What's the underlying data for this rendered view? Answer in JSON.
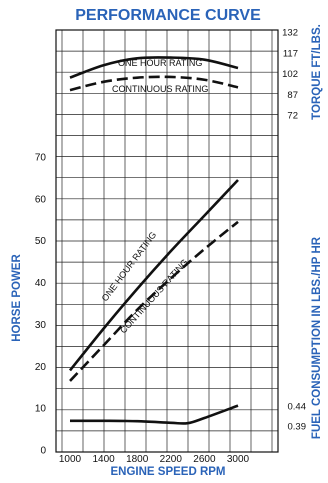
{
  "chart_data": [
    {
      "type": "line",
      "title": "PERFORMANCE CURVE",
      "xlabel": "ENGINE SPEED RPM",
      "ylabel": "HORSE POWER",
      "x_ticks": [
        1000,
        1400,
        1800,
        2200,
        2600,
        3000
      ],
      "y_ticks": [
        0,
        10,
        20,
        30,
        40,
        50,
        60,
        70
      ],
      "xlim": [
        1000,
        3000
      ],
      "ylim": [
        0,
        70
      ],
      "grid": true,
      "series": [
        {
          "name": "ONE HOUR RATING",
          "x": [
            1000,
            1400,
            1800,
            2200,
            2600,
            3000
          ],
          "y": [
            19,
            29,
            38.5,
            47.5,
            56,
            64.5
          ]
        },
        {
          "name": "CONTINUOUS RATING",
          "x": [
            1000,
            1400,
            1800,
            2200,
            2600,
            3000
          ],
          "y": [
            16.5,
            25,
            33.5,
            41,
            48,
            54.5
          ],
          "dashed": true
        }
      ]
    },
    {
      "type": "line",
      "ylabel": "TORQUE FT/LBS.",
      "y_ticks": [
        72,
        87,
        102,
        117,
        132
      ],
      "series": [
        {
          "name": "ONE HOUR RATING",
          "x": [
            1000,
            1400,
            1800,
            2200,
            2600,
            3000
          ],
          "y": [
            99,
            108,
            113,
            113.5,
            112,
            106
          ]
        },
        {
          "name": "CONTINUOUS RATING",
          "x": [
            1000,
            1400,
            1800,
            2200,
            2600,
            3000
          ],
          "y": [
            90,
            96,
            99,
            99.5,
            97.5,
            92
          ],
          "dashed": true
        }
      ]
    },
    {
      "type": "line",
      "ylabel": "FUEL CONSUMPTION IN LBS./HP HR",
      "y_ticks": [
        0.44,
        0.39
      ],
      "series": [
        {
          "x": [
            1000,
            1400,
            1800,
            2200,
            2400,
            2600,
            3000
          ],
          "y": [
            0.403,
            0.403,
            0.402,
            0.398,
            0.397,
            0.41,
            0.441
          ]
        }
      ]
    }
  ],
  "labels": {
    "one_hour": "ONE HOUR RATING",
    "continuous": "CONTINUOUS RATING"
  },
  "colors": {
    "accent": "#2a63b8",
    "ink": "#111111"
  }
}
